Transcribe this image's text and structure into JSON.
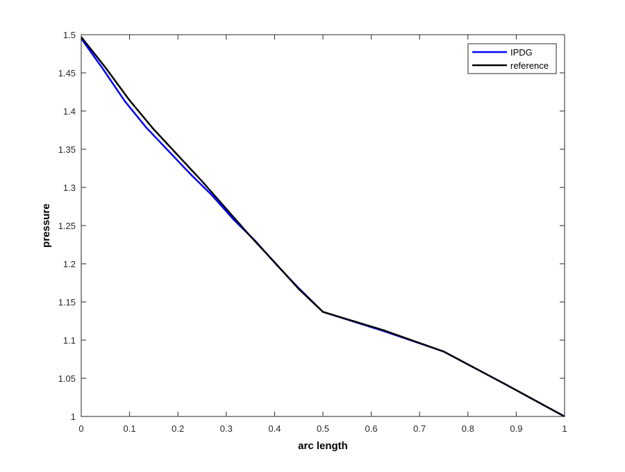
{
  "chart_data": {
    "type": "line",
    "title": "",
    "xlabel": "arc length",
    "ylabel": "pressure",
    "xlim": [
      0,
      1
    ],
    "ylim": [
      1,
      1.5
    ],
    "xticks": [
      0,
      0.1,
      0.2,
      0.3,
      0.4,
      0.5,
      0.6,
      0.7,
      0.8,
      0.9,
      1
    ],
    "xtick_labels": [
      "0",
      "0.1",
      "0.2",
      "0.3",
      "0.4",
      "0.5",
      "0.6",
      "0.7",
      "0.8",
      "0.9",
      "1"
    ],
    "yticks": [
      1,
      1.05,
      1.1,
      1.15,
      1.2,
      1.25,
      1.3,
      1.35,
      1.4,
      1.45,
      1.5
    ],
    "ytick_labels": [
      "1",
      "1.05",
      "1.1",
      "1.15",
      "1.2",
      "1.25",
      "1.3",
      "1.35",
      "1.4",
      "1.45",
      "1.5"
    ],
    "grid": false,
    "legend_position": "top-right",
    "series": [
      {
        "name": "IPDG",
        "color": "#0000ff",
        "x": [
          0,
          0.045,
          0.09,
          0.135,
          0.18,
          0.225,
          0.27,
          0.315,
          0.36,
          0.405,
          0.45,
          0.5,
          0.625,
          0.75,
          0.875,
          1
        ],
        "y": [
          1.495,
          1.455,
          1.413,
          1.378,
          1.348,
          1.318,
          1.29,
          1.258,
          1.23,
          1.198,
          1.168,
          1.137,
          1.112,
          1.085,
          1.043,
          1.0
        ]
      },
      {
        "name": "reference",
        "color": "#000000",
        "x": [
          0,
          0.05,
          0.1,
          0.15,
          0.2,
          0.25,
          0.3,
          0.35,
          0.4,
          0.45,
          0.5,
          0.625,
          0.75,
          0.875,
          1
        ],
        "y": [
          1.497,
          1.457,
          1.414,
          1.376,
          1.342,
          1.308,
          1.272,
          1.236,
          1.202,
          1.167,
          1.137,
          1.113,
          1.085,
          1.043,
          1.0
        ]
      }
    ]
  }
}
